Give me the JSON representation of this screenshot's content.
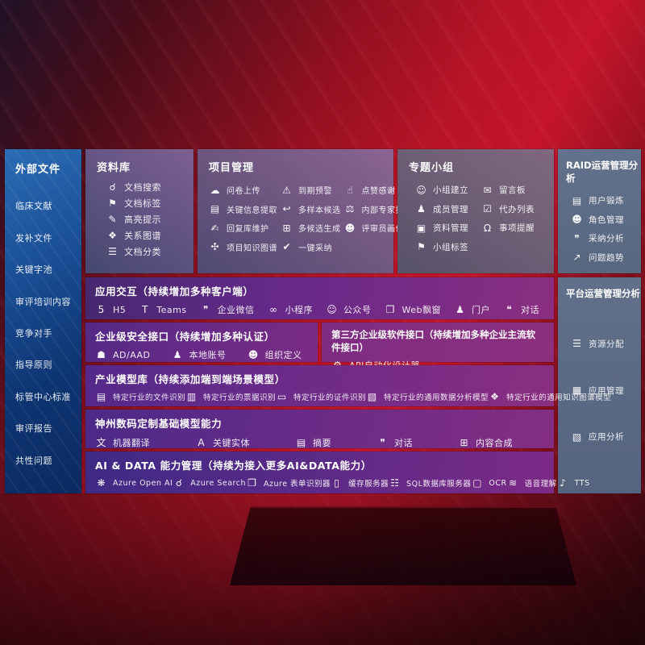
{
  "colors": {
    "bg_red": "#b81426",
    "sidebar_blue": "#1a4f96",
    "panel_purple": "#6b557f",
    "panel_gray": "#5d6c84",
    "row_purple": "#6f2b88"
  },
  "sidebar": {
    "title": "外部文件",
    "items": [
      {
        "name": "clinical-literature",
        "label": "临床文献"
      },
      {
        "name": "supplement-files",
        "label": "发补文件"
      },
      {
        "name": "keyword-pool",
        "label": "关键字池"
      },
      {
        "name": "review-training-content",
        "label": "审评培训内容"
      },
      {
        "name": "competitors",
        "label": "竞争对手"
      },
      {
        "name": "guidelines",
        "label": "指导原则"
      },
      {
        "name": "cde-center-standards",
        "label": "标管中心标准"
      },
      {
        "name": "review-reports",
        "label": "审评报告"
      },
      {
        "name": "common-issues",
        "label": "共性问题"
      }
    ]
  },
  "panels": {
    "ziliaoku": {
      "title": "资料库",
      "items": [
        {
          "name": "doc-search",
          "icon_name": "doc-search-icon",
          "icon": "☌",
          "label": "文档搜索"
        },
        {
          "name": "doc-tags",
          "icon_name": "tag-icon",
          "icon": "⚑",
          "label": "文档标签"
        },
        {
          "name": "highlight-tips",
          "icon_name": "pencil-icon",
          "icon": "✎",
          "label": "高亮提示"
        },
        {
          "name": "relation-graph",
          "icon_name": "graph-icon",
          "icon": "❖",
          "label": "关系图谱"
        },
        {
          "name": "doc-classify",
          "icon_name": "list-icon",
          "icon": "☰",
          "label": "文档分类"
        }
      ]
    },
    "project": {
      "title": "项目管理",
      "items": [
        {
          "name": "survey-upload",
          "icon_name": "cloud-upload-icon",
          "icon": "☁",
          "label": "问卷上传"
        },
        {
          "name": "due-warning",
          "icon_name": "alarm-icon",
          "icon": "⚠",
          "label": "到期预警"
        },
        {
          "name": "like-thanks",
          "icon_name": "thumb-up-icon",
          "icon": "☝",
          "label": "点赞感谢"
        },
        {
          "name": "key-info-extract",
          "icon_name": "doc-extract-icon",
          "icon": "▤",
          "label": "关键信息提取"
        },
        {
          "name": "multi-sample-candidate",
          "icon_name": "reply-icon",
          "icon": "↩",
          "label": "多样本候选"
        },
        {
          "name": "internal-expert-ranking",
          "icon_name": "ranking-icon",
          "icon": "⚖",
          "label": "内部专家排名"
        },
        {
          "name": "reply-lib-maintain",
          "icon_name": "edit-icon",
          "icon": "✍",
          "label": "回复库维护"
        },
        {
          "name": "multi-candidate-gen",
          "icon_name": "grid-plus-icon",
          "icon": "⊞",
          "label": "多候选生成"
        },
        {
          "name": "reviewer-portrait",
          "icon_name": "person-icon",
          "icon": "☻",
          "label": "评审员画像"
        },
        {
          "name": "project-knowledge-graph",
          "icon_name": "knowledge-graph-icon",
          "icon": "✣",
          "label": "项目知识图谱"
        },
        {
          "name": "one-click-adopt",
          "icon_name": "check-icon",
          "icon": "✔",
          "label": "一键采纳"
        }
      ]
    },
    "group": {
      "title": "专题小组",
      "items": [
        {
          "name": "group-create",
          "icon_name": "people-icon",
          "icon": "☺",
          "label": "小组建立"
        },
        {
          "name": "message-board",
          "icon_name": "bbs-icon",
          "icon": "✉",
          "label": "留言板"
        },
        {
          "name": "member-manage",
          "icon_name": "member-icon",
          "icon": "♟",
          "label": "成员管理"
        },
        {
          "name": "todo-list",
          "icon_name": "clipboard-icon",
          "icon": "☑",
          "label": "代办列表"
        },
        {
          "name": "material-manage",
          "icon_name": "album-icon",
          "icon": "▣",
          "label": "资料管理"
        },
        {
          "name": "matter-remind",
          "icon_name": "bell-icon",
          "icon": "Ω",
          "label": "事项提醒"
        },
        {
          "name": "group-tags",
          "icon_name": "tag-icon",
          "icon": "⚑",
          "label": "小组标签"
        }
      ]
    },
    "raid": {
      "title": "RAID运营管理分析",
      "items": [
        {
          "name": "user-training",
          "icon_name": "id-card-icon",
          "icon": "▤",
          "label": "用户锻炼"
        },
        {
          "name": "role-manage",
          "icon_name": "roles-icon",
          "icon": "☻",
          "label": "角色管理"
        },
        {
          "name": "adoption-analysis",
          "icon_name": "chat-qa-icon",
          "icon": "❞",
          "label": "采纳分析"
        },
        {
          "name": "issue-trend",
          "icon_name": "trend-icon",
          "icon": "↗",
          "label": "问题趋势"
        }
      ]
    },
    "platform": {
      "title": "平台运营管理分析",
      "items": [
        {
          "name": "resource-allocation",
          "icon_name": "list-icon",
          "icon": "☰",
          "label": "资源分配"
        },
        {
          "name": "app-manage",
          "icon_name": "apps-grid-icon",
          "icon": "▦",
          "label": "应用管理"
        },
        {
          "name": "app-analysis",
          "icon_name": "chart-icon",
          "icon": "▧",
          "label": "应用分析"
        }
      ]
    }
  },
  "rows": {
    "interaction": {
      "title": "应用交互（持续增加多种客户端）",
      "items": [
        {
          "name": "h5",
          "icon_name": "html5-icon",
          "icon": "5",
          "label": "H5"
        },
        {
          "name": "teams",
          "icon_name": "teams-icon",
          "icon": "T",
          "label": "Teams"
        },
        {
          "name": "wecom",
          "icon_name": "wecom-icon",
          "icon": "❞",
          "label": "企业微信"
        },
        {
          "name": "mini-program",
          "icon_name": "miniprogram-icon",
          "icon": "∞",
          "label": "小程序"
        },
        {
          "name": "official-account",
          "icon_name": "official-account-icon",
          "icon": "☺",
          "label": "公众号"
        },
        {
          "name": "web-popup",
          "icon_name": "window-icon",
          "icon": "❐",
          "label": "Web飘窗"
        },
        {
          "name": "portal",
          "icon_name": "portal-icon",
          "icon": "♟",
          "label": "门户"
        },
        {
          "name": "dialog",
          "icon_name": "dialog-icon",
          "icon": "❝",
          "label": "对话"
        }
      ]
    },
    "security": {
      "title": "企业级安全接口（持续增加多种认证）",
      "items": [
        {
          "name": "ad-aad",
          "icon_name": "shield-icon",
          "icon": "☗",
          "label": "AD/AAD"
        },
        {
          "name": "local-account",
          "icon_name": "account-icon",
          "icon": "♟",
          "label": "本地账号"
        },
        {
          "name": "org-definition",
          "icon_name": "org-icon",
          "icon": "☻",
          "label": "组织定义"
        }
      ]
    },
    "thirdparty": {
      "title": "第三方企业级软件接口（持续增加多种企业主流软件接口）",
      "items": [
        {
          "name": "api-auto-designer",
          "icon_name": "gear-icon",
          "icon": "⚙",
          "label": "API自动化设计器"
        }
      ]
    },
    "models": {
      "title": "产业模型库（持续添加端到端场景模型）",
      "items": [
        {
          "name": "industry-file-recognition",
          "icon_name": "file-icon",
          "icon": "▤",
          "label": "特定行业的文件识别"
        },
        {
          "name": "industry-invoice-recognition",
          "icon_name": "invoice-icon",
          "icon": "▥",
          "label": "特定行业的票据识别"
        },
        {
          "name": "industry-id-recognition",
          "icon_name": "id-icon",
          "icon": "▭",
          "label": "特定行业的证件识别"
        },
        {
          "name": "industry-data-analysis-model",
          "icon_name": "photo-chart-icon",
          "icon": "▧",
          "label": "特定行业的通用数据分析模型"
        },
        {
          "name": "industry-knowledge-graph-model",
          "icon_name": "graph-icon",
          "icon": "❖",
          "label": "特定行业的通用知识图谱模型"
        }
      ]
    },
    "base": {
      "title": "神州数码定制基础模型能力",
      "items": [
        {
          "name": "machine-translation",
          "icon_name": "translate-icon",
          "icon": "文",
          "label": "机器翻译"
        },
        {
          "name": "key-entity",
          "icon_name": "entity-icon",
          "icon": "A",
          "label": "关键实体"
        },
        {
          "name": "summary",
          "icon_name": "summary-doc-icon",
          "icon": "▤",
          "label": "摘要"
        },
        {
          "name": "dialog2",
          "icon_name": "chat-icon",
          "icon": "❞",
          "label": "对话"
        },
        {
          "name": "content-synthesis",
          "icon_name": "puzzle-icon",
          "icon": "⊞",
          "label": "内容合成"
        }
      ]
    },
    "aidata": {
      "title": "AI & DATA 能力管理（持续为接入更多AI&DATA能力）",
      "items": [
        {
          "name": "azure-openai",
          "icon_name": "openai-icon",
          "icon": "❋",
          "label": "Azure Open AI"
        },
        {
          "name": "azure-search",
          "icon_name": "search-icon",
          "icon": "☌",
          "label": "Azure Search"
        },
        {
          "name": "azure-form-recognizer",
          "icon_name": "form-scan-icon",
          "icon": "❐",
          "label": "Azure 表单识别器"
        },
        {
          "name": "cache-server",
          "icon_name": "server-icon",
          "icon": "▯",
          "label": "缓存服务器"
        },
        {
          "name": "sql-db-server",
          "icon_name": "database-icon",
          "icon": "☷",
          "label": "SQL数据库服务器"
        },
        {
          "name": "ocr",
          "icon_name": "ocr-icon",
          "icon": "▢",
          "label": "OCR"
        },
        {
          "name": "speech-understanding",
          "icon_name": "speech-icon",
          "icon": "≋",
          "label": "语音理解"
        },
        {
          "name": "tts",
          "icon_name": "tts-icon",
          "icon": "♪",
          "label": "TTS"
        }
      ]
    }
  }
}
